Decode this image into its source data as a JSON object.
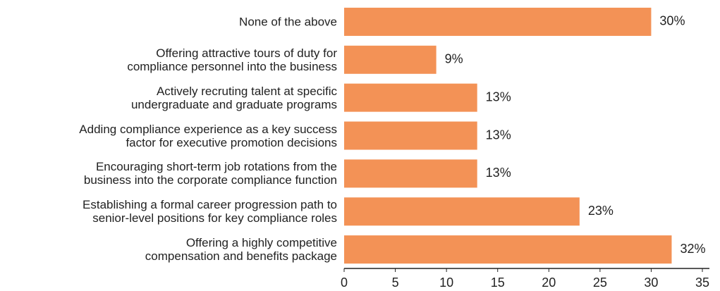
{
  "chart_data": {
    "type": "bar",
    "orientation": "horizontal",
    "categories": [
      "None of the above",
      "Offering attractive tours of duty for\ncompliance personnel into the business",
      "Actively recruting talent at specific\nundergraduate and graduate programs",
      "Adding compliance experience as a key success\nfactor for executive promotion decisions",
      "Encouraging short-term job rotations from the\nbusiness into the corporate compliance function",
      "Establishing a formal career progression path to\nsenior-level positions for key compliance roles",
      "Offering a highly competitive\ncompensation and benefits package"
    ],
    "values": [
      30,
      9,
      13,
      13,
      13,
      23,
      32
    ],
    "value_labels": [
      "30%",
      "9%",
      "13%",
      "13%",
      "13%",
      "23%",
      "32%"
    ],
    "color": "#f39256",
    "xlim": [
      0,
      35
    ],
    "xticks": [
      0,
      5,
      10,
      15,
      20,
      25,
      30,
      35
    ],
    "grid": false
  }
}
